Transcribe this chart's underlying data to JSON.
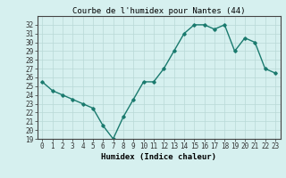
{
  "x": [
    0,
    1,
    2,
    3,
    4,
    5,
    6,
    7,
    8,
    9,
    10,
    11,
    12,
    13,
    14,
    15,
    16,
    17,
    18,
    19,
    20,
    21,
    22,
    23
  ],
  "y": [
    25.5,
    24.5,
    24.0,
    23.5,
    23.0,
    22.5,
    20.5,
    19.0,
    21.5,
    23.5,
    25.5,
    25.5,
    27.0,
    29.0,
    31.0,
    32.0,
    32.0,
    31.5,
    32.0,
    29.0,
    30.5,
    30.0,
    27.0,
    26.5
  ],
  "title": "Courbe de l'humidex pour Nantes (44)",
  "xlabel": "Humidex (Indice chaleur)",
  "ylabel": "",
  "ylim": [
    19,
    33
  ],
  "xlim": [
    -0.5,
    23.5
  ],
  "yticks": [
    19,
    20,
    21,
    22,
    23,
    24,
    25,
    26,
    27,
    28,
    29,
    30,
    31,
    32
  ],
  "xticks": [
    0,
    1,
    2,
    3,
    4,
    5,
    6,
    7,
    8,
    9,
    10,
    11,
    12,
    13,
    14,
    15,
    16,
    17,
    18,
    19,
    20,
    21,
    22,
    23
  ],
  "line_color": "#1a7a6e",
  "marker": "D",
  "marker_size": 1.8,
  "line_width": 1.0,
  "bg_color": "#d6f0ef",
  "grid_color": "#b8d8d6",
  "title_fontsize": 6.5,
  "axis_fontsize": 6.5,
  "tick_fontsize": 5.5
}
